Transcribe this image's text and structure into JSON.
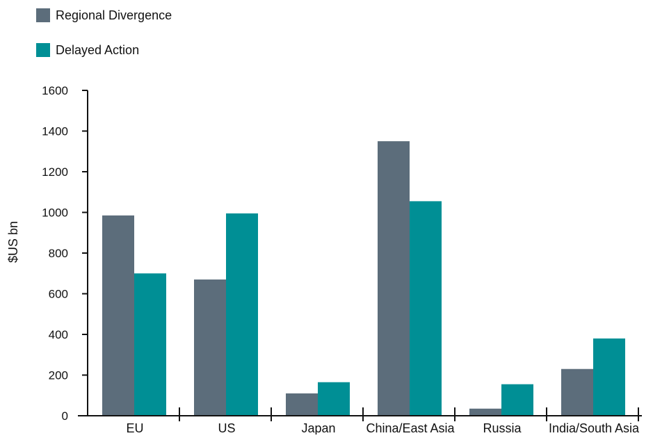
{
  "chart_data": {
    "type": "bar",
    "title": "",
    "xlabel": "",
    "ylabel": "$US bn",
    "ylim": [
      0,
      1600
    ],
    "yticks": [
      0,
      200,
      400,
      600,
      800,
      1000,
      1200,
      1400,
      1600
    ],
    "categories": [
      "EU",
      "US",
      "Japan",
      "China/East Asia",
      "Russia",
      "India/South Asia"
    ],
    "series": [
      {
        "name": "Regional Divergence",
        "color": "#5c6d7b",
        "values": [
          985,
          670,
          110,
          1350,
          35,
          230
        ]
      },
      {
        "name": "Delayed Action",
        "color": "#008f95",
        "values": [
          700,
          995,
          165,
          1055,
          155,
          380
        ]
      }
    ],
    "grid": false,
    "legend_position": "top-left"
  }
}
